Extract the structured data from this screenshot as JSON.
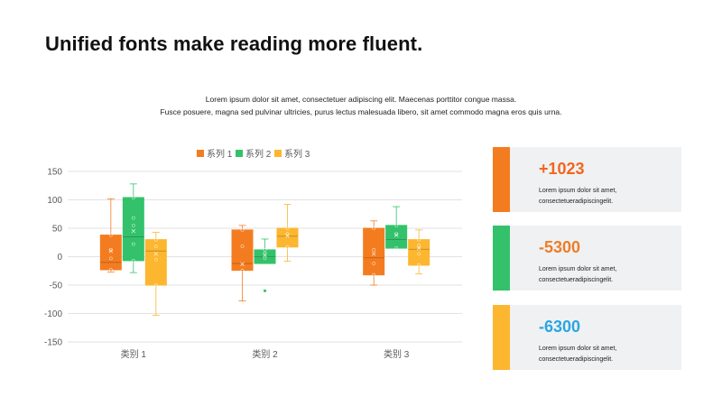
{
  "page": {
    "title": "Unified fonts make reading more fluent.",
    "subtitle_lines": [
      "Lorem ipsum dolor sit amet, consectetuer adipiscing elit. Maecenas porttitor congue massa.",
      "Fusce posuere, magna sed pulvinar ultricies, purus lectus malesuada libero, sit amet commodo magna eros quis urna."
    ]
  },
  "chart_data": {
    "type": "boxplot",
    "categories": [
      "类别 1",
      "类别 2",
      "类别 3"
    ],
    "ylim": [
      -150,
      150
    ],
    "yticks": [
      150,
      100,
      50,
      0,
      -50,
      -100,
      -150
    ],
    "grid": true,
    "legend_position": "top",
    "series": [
      {
        "name": "系列 1",
        "color": "#f47c20",
        "boxes": [
          {
            "min": -27,
            "q1": -23,
            "median": -10,
            "q3": 38,
            "max": 102,
            "mean": 10,
            "points": [
              38,
              12,
              -3,
              -23
            ]
          },
          {
            "min": -78,
            "q1": -24,
            "median": -12,
            "q3": 47,
            "max": 55,
            "mean": -13,
            "points": [
              47,
              18,
              -24
            ]
          },
          {
            "min": -50,
            "q1": -32,
            "median": -2,
            "q3": 50,
            "max": 63,
            "mean": 5,
            "points": [
              50,
              12,
              -12,
              -32
            ]
          }
        ]
      },
      {
        "name": "系列 2",
        "color": "#33c26b",
        "boxes": [
          {
            "min": -28,
            "q1": -7,
            "median": 35,
            "q3": 104,
            "max": 128,
            "mean": 45,
            "points": [
              104,
              68,
              55,
              22,
              -7
            ]
          },
          {
            "min": -12,
            "q1": -12,
            "median": 0,
            "q3": 12,
            "max": 31,
            "mean": 3,
            "points": [
              12,
              6,
              -3
            ],
            "outliers": [
              -60
            ]
          },
          {
            "min": 15,
            "q1": 15,
            "median": 30,
            "q3": 55,
            "max": 88,
            "mean": 38,
            "points": [
              55,
              40,
              15
            ]
          }
        ]
      },
      {
        "name": "系列 3",
        "color": "#fdb62f",
        "boxes": [
          {
            "min": -103,
            "q1": -50,
            "median": 10,
            "q3": 30,
            "max": 43,
            "mean": 5,
            "points": [
              30,
              18,
              -5,
              -50
            ]
          },
          {
            "min": -8,
            "q1": 17,
            "median": 36,
            "q3": 50,
            "max": 92,
            "mean": 37,
            "points": [
              50,
              40,
              17
            ]
          },
          {
            "min": -30,
            "q1": -15,
            "median": 13,
            "q3": 30,
            "max": 47,
            "mean": 15,
            "points": [
              30,
              20,
              5,
              -15
            ]
          }
        ]
      }
    ]
  },
  "cards": [
    {
      "value": "+1023",
      "value_color": "#f0661e",
      "bar_color": "#f47c20",
      "lines": [
        "Lorem ipsum dolor sit amet,",
        "consectetueradipiscingelit."
      ]
    },
    {
      "value": "-5300",
      "value_color": "#ee7d28",
      "bar_color": "#33c26b",
      "lines": [
        "Lorem ipsum dolor sit amet,",
        "consectetueradipiscingelit."
      ]
    },
    {
      "value": "-6300",
      "value_color": "#2aa6e0",
      "bar_color": "#fdb62f",
      "lines": [
        "Lorem ipsum dolor sit amet,",
        "consectetueradipiscingelit."
      ]
    }
  ]
}
